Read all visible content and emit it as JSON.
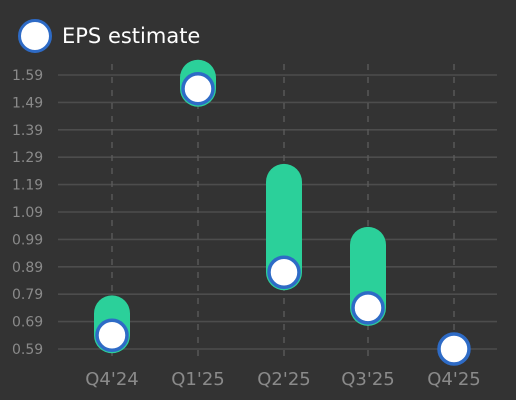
{
  "chart_data": {
    "type": "scatter",
    "title": "",
    "xlabel": "",
    "ylabel": "",
    "categories": [
      "Q4'24",
      "Q1'25",
      "Q2'25",
      "Q3'25",
      "Q4'25"
    ],
    "ylim": [
      0.59,
      1.64
    ],
    "y_ticks": [
      "0.59",
      "0.69",
      "0.79",
      "0.89",
      "0.99",
      "1.09",
      "1.19",
      "1.29",
      "1.39",
      "1.49",
      "1.59"
    ],
    "series": [
      {
        "name": "EPS estimate",
        "marker": "circle",
        "values": [
          0.64,
          1.54,
          0.87,
          0.74,
          0.59
        ]
      }
    ],
    "ranges": [
      {
        "category": "Q4'24",
        "low": 0.64,
        "high": 0.72
      },
      {
        "category": "Q1'25",
        "low": 1.54,
        "high": 1.58
      },
      {
        "category": "Q2'25",
        "low": 0.87,
        "high": 1.2
      },
      {
        "category": "Q3'25",
        "low": 0.74,
        "high": 0.97
      },
      {
        "category": "Q4'25",
        "low": 0.59,
        "high": 0.59
      }
    ],
    "grid": true,
    "legend_position": "top-left",
    "colors": {
      "background": "#333333",
      "range_bar": "#2bd09a",
      "marker_fill": "#ffffff",
      "marker_stroke": "#2e6bc6",
      "gridline": "#4d4d4d",
      "vertical_gridline": "#5a5a5a",
      "tick_label": "#8a8a8a",
      "legend_text": "#ffffff"
    }
  },
  "legend": {
    "label": "EPS estimate",
    "icon": "circle-marker-icon"
  }
}
